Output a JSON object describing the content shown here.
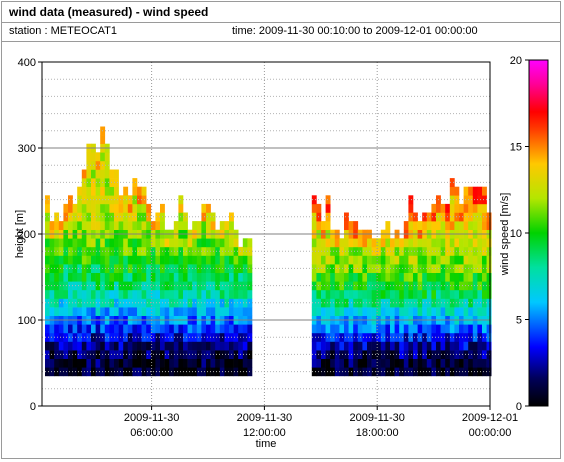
{
  "header": {
    "title": "wind data (measured) - wind speed",
    "station": "station : METEOCAT1",
    "time_range": "time: 2009-11-30 00:10:00 to 2009-12-01 00:00:00"
  },
  "chart_data": {
    "type": "heatmap",
    "title": "wind data (measured) - wind speed",
    "xlabel": "time",
    "ylabel": "height [m]",
    "x_ticks": [
      {
        "hour": 6,
        "line1": "2009-11-30",
        "line2": "06:00:00"
      },
      {
        "hour": 12,
        "line1": "2009-11-30",
        "line2": "12:00:00"
      },
      {
        "hour": 18,
        "line1": "2009-11-30",
        "line2": "18:00:00"
      },
      {
        "hour": 24,
        "line1": "2009-12-01",
        "line2": "00:00:00"
      }
    ],
    "y_ticks": [
      "0",
      "100",
      "200",
      "300",
      "400"
    ],
    "ylim": [
      0,
      400
    ],
    "xlim_hours": [
      0.17,
      24
    ],
    "grid": true,
    "colorbar": {
      "label": "wind speed [m/s]",
      "min": 0,
      "max": 20,
      "ticks": [
        "0",
        "5",
        "10",
        "15",
        "20"
      ]
    },
    "data_gap_hours": [
      11.3,
      14.4
    ],
    "z_unit": "m/s",
    "approx_top_of_data_height_m": [
      [
        0.5,
        225
      ],
      [
        1.0,
        215
      ],
      [
        1.5,
        235
      ],
      [
        2.0,
        250
      ],
      [
        2.5,
        275
      ],
      [
        3.0,
        305
      ],
      [
        3.5,
        290
      ],
      [
        4.0,
        250
      ],
      [
        4.5,
        240
      ],
      [
        5.0,
        255
      ],
      [
        5.5,
        245
      ],
      [
        6.0,
        225
      ],
      [
        6.5,
        230
      ],
      [
        7.0,
        215
      ],
      [
        7.5,
        220
      ],
      [
        8.0,
        205
      ],
      [
        8.5,
        230
      ],
      [
        9.0,
        210
      ],
      [
        9.5,
        200
      ],
      [
        10.0,
        210
      ],
      [
        10.5,
        195
      ],
      [
        11.0,
        180
      ],
      [
        14.5,
        250
      ],
      [
        15.0,
        230
      ],
      [
        15.5,
        220
      ],
      [
        16.0,
        205
      ],
      [
        16.5,
        225
      ],
      [
        17.0,
        210
      ],
      [
        17.5,
        200
      ],
      [
        18.0,
        215
      ],
      [
        18.5,
        205
      ],
      [
        19.0,
        195
      ],
      [
        19.5,
        230
      ],
      [
        20.0,
        225
      ],
      [
        20.5,
        235
      ],
      [
        21.0,
        240
      ],
      [
        21.5,
        235
      ],
      [
        22.0,
        240
      ],
      [
        22.5,
        245
      ],
      [
        23.0,
        240
      ],
      [
        23.5,
        235
      ],
      [
        24.0,
        230
      ]
    ],
    "approx_mean_speed_profile_m_s": [
      [
        40,
        0.5
      ],
      [
        60,
        1.5
      ],
      [
        80,
        3.0
      ],
      [
        100,
        5.0
      ],
      [
        120,
        7.0
      ],
      [
        140,
        8.5
      ],
      [
        160,
        9.5
      ],
      [
        180,
        10.5
      ],
      [
        200,
        11.5
      ],
      [
        225,
        12.5
      ],
      [
        250,
        12.5
      ],
      [
        300,
        12.0
      ]
    ]
  }
}
